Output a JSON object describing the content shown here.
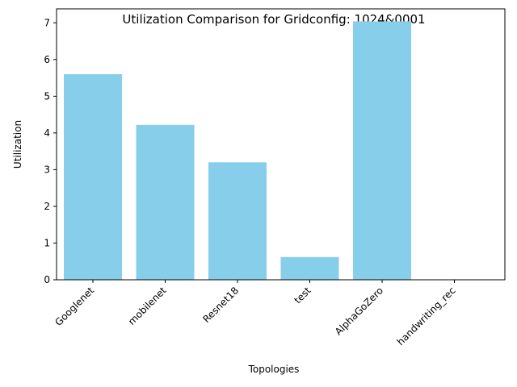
{
  "chart_data": {
    "type": "bar",
    "title": "Utilization Comparison for Gridconfig: 1024&0001",
    "xlabel": "Topologies",
    "ylabel": "Utilization",
    "categories": [
      "Googlenet",
      "mobilenet",
      "Resnet18",
      "test",
      "AlphaGoZero",
      "handwriting_rec"
    ],
    "values": [
      5.6,
      4.22,
      3.2,
      0.62,
      7.04,
      0
    ],
    "ylim": [
      0,
      7.38
    ],
    "yticks": [
      0,
      1,
      2,
      3,
      4,
      5,
      6,
      7
    ],
    "bar_color": "#87ceeb",
    "grid": false,
    "legend": "none"
  }
}
